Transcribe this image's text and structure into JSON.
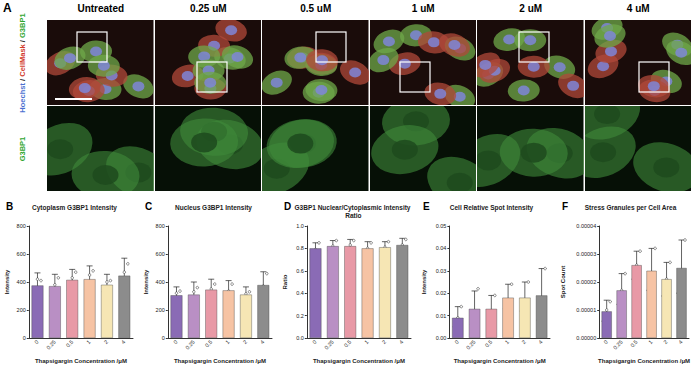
{
  "panel_a": {
    "label": "A",
    "columns": [
      "Untreated",
      "0.25 uM",
      "0.5 uM",
      "1 uM",
      "2 uM",
      "4 uM"
    ],
    "row_labels": [
      [
        {
          "text": "Hoechst",
          "color": "#4a6fd0"
        },
        {
          "text": " / ",
          "color": "#222222"
        },
        {
          "text": "CellMask",
          "color": "#d23a2a"
        },
        {
          "text": " / ",
          "color": "#222222"
        },
        {
          "text": "G3BP1",
          "color": "#2ea52e"
        }
      ],
      [
        {
          "text": "G3BP1",
          "color": "#2ea52e"
        }
      ]
    ]
  },
  "chart_data": [
    {
      "type": "bar",
      "panel_label": "B",
      "title": "Cytoplasm G3BP1 Intensity",
      "x_label": "Thapsigargin Concentration /μM",
      "y_label": "Intensity",
      "categories": [
        "0",
        "0.25",
        "0.5",
        "1",
        "2",
        "4"
      ],
      "values": [
        375,
        370,
        415,
        420,
        380,
        445
      ],
      "errors": [
        90,
        85,
        75,
        95,
        75,
        125
      ],
      "points": [
        [
          290,
          420,
          410
        ],
        [
          300,
          380,
          430
        ],
        [
          340,
          430,
          470
        ],
        [
          330,
          450,
          480
        ],
        [
          330,
          400,
          410
        ],
        [
          330,
          470,
          530
        ]
      ],
      "colors": [
        "#8a6bb5",
        "#b98fc4",
        "#e899a6",
        "#f6c3a4",
        "#f6e6b4",
        "#8c8c8c"
      ],
      "ylim": [
        0,
        800
      ],
      "yticks": [
        0,
        200,
        400,
        600,
        800
      ],
      "grid": false
    },
    {
      "type": "bar",
      "panel_label": "C",
      "title": "Nucleus G3BP1 Intensity",
      "x_label": "Thapsigargin Concentration /μM",
      "y_label": "Intensity",
      "categories": [
        "0",
        "0.25",
        "0.5",
        "1",
        "2",
        "4"
      ],
      "values": [
        305,
        310,
        345,
        340,
        310,
        378
      ],
      "errors": [
        60,
        90,
        75,
        70,
        55,
        95
      ],
      "points": [
        [
          260,
          320,
          335
        ],
        [
          240,
          330,
          360
        ],
        [
          300,
          350,
          385
        ],
        [
          300,
          335,
          385
        ],
        [
          285,
          315,
          330
        ],
        [
          300,
          370,
          460
        ]
      ],
      "colors": [
        "#8a6bb5",
        "#b98fc4",
        "#e899a6",
        "#f6c3a4",
        "#f6e6b4",
        "#8c8c8c"
      ],
      "ylim": [
        0,
        800
      ],
      "yticks": [
        0,
        200,
        400,
        600,
        800
      ],
      "grid": false
    },
    {
      "type": "bar",
      "panel_label": "D",
      "title": "G3BP1 Nuclear/Cytoplasmic Intensity Ratio",
      "x_label": "Thapsigargin Concentration /μM",
      "y_label": "Ratio",
      "categories": [
        "0",
        "0.25",
        "0.5",
        "1",
        "2",
        "4"
      ],
      "values": [
        0.8,
        0.82,
        0.82,
        0.8,
        0.81,
        0.83
      ],
      "errors": [
        0.05,
        0.05,
        0.06,
        0.06,
        0.05,
        0.06
      ],
      "points": [
        [
          0.76,
          0.79,
          0.85
        ],
        [
          0.78,
          0.82,
          0.87
        ],
        [
          0.77,
          0.83,
          0.87
        ],
        [
          0.76,
          0.8,
          0.85
        ],
        [
          0.77,
          0.81,
          0.86
        ],
        [
          0.78,
          0.83,
          0.88
        ]
      ],
      "colors": [
        "#8a6bb5",
        "#b98fc4",
        "#e899a6",
        "#f6c3a4",
        "#f6e6b4",
        "#8c8c8c"
      ],
      "ylim": [
        0,
        1
      ],
      "yticks": [
        {
          "value": 0,
          "label": "0.0"
        },
        0.2,
        0.4,
        0.6,
        0.8,
        {
          "value": 1,
          "label": "1.0"
        }
      ],
      "grid": false
    },
    {
      "type": "bar",
      "panel_label": "E",
      "title": "Cell Relative Spot Intensity",
      "x_label": "Thapsigargin Concentration /μM",
      "y_label": "Intensity",
      "categories": [
        "0",
        "0.25",
        "0.5",
        "1",
        "2",
        "4"
      ],
      "values": [
        0.009,
        0.013,
        0.013,
        0.018,
        0.018,
        0.019
      ],
      "errors": [
        0.005,
        0.008,
        0.006,
        0.006,
        0.007,
        0.012
      ],
      "points": [
        [
          0.005,
          0.009,
          0.014
        ],
        [
          0.006,
          0.012,
          0.022
        ],
        [
          0.008,
          0.012,
          0.019
        ],
        [
          0.013,
          0.017,
          0.024
        ],
        [
          0.012,
          0.016,
          0.025
        ],
        [
          0.008,
          0.016,
          0.031
        ]
      ],
      "colors": [
        "#8a6bb5",
        "#b98fc4",
        "#e899a6",
        "#f6c3a4",
        "#f6e6b4",
        "#8c8c8c"
      ],
      "ylim": [
        0,
        0.05
      ],
      "yticks": [
        {
          "value": 0,
          "label": "0.00"
        },
        {
          "value": 0.01,
          "label": "0.01"
        },
        {
          "value": 0.02,
          "label": "0.02"
        },
        {
          "value": 0.03,
          "label": "0.03"
        },
        {
          "value": 0.04,
          "label": "0.04"
        },
        {
          "value": 0.05,
          "label": "0.05"
        }
      ],
      "grid": false
    },
    {
      "type": "bar",
      "panel_label": "F",
      "title": "Stress Granules per Cell Area",
      "x_label": "Thapsigargin Concentration /μM",
      "y_label": "Spot Count",
      "categories": [
        "0",
        "0.25",
        "0.5",
        "1",
        "2",
        "4"
      ],
      "values": [
        9.5e-06,
        1.7e-05,
        2.6e-05,
        2.4e-05,
        2.1e-05,
        2.5e-05
      ],
      "errors": [
        4e-06,
        6e-06,
        5e-06,
        8e-06,
        6e-06,
        1e-05
      ],
      "points": [
        [
          6e-06,
          1e-05,
          1.3e-05
        ],
        [
          1.2e-05,
          1.7e-05,
          2.3e-05
        ],
        [
          2.1e-05,
          2.6e-05,
          3.1e-05
        ],
        [
          1.7e-05,
          2.3e-05,
          3.2e-05
        ],
        [
          1.5e-05,
          2.1e-05,
          2.7e-05
        ],
        [
          1.6e-05,
          2.3e-05,
          3.5e-05
        ]
      ],
      "colors": [
        "#8a6bb5",
        "#b98fc4",
        "#e899a6",
        "#f6c3a4",
        "#f6e6b4",
        "#8c8c8c"
      ],
      "ylim": [
        0,
        4e-05
      ],
      "yticks": [
        {
          "value": 0,
          "label": "0.00000"
        },
        {
          "value": 1e-05,
          "label": "0.00001"
        },
        {
          "value": 2e-05,
          "label": "0.00002"
        },
        {
          "value": 3e-05,
          "label": "0.00003"
        },
        {
          "value": 4e-05,
          "label": "0.00004"
        }
      ],
      "grid": false
    }
  ]
}
